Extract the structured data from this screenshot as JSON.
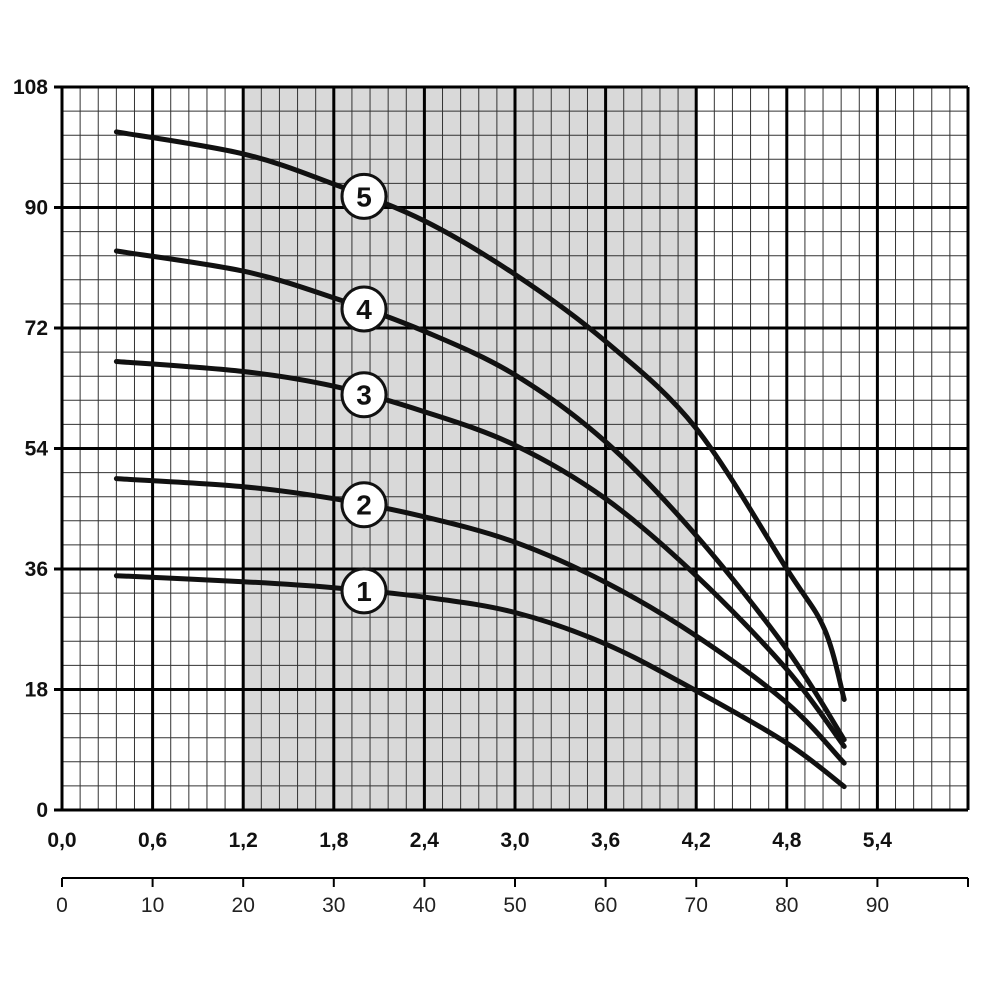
{
  "chart_data": {
    "type": "line",
    "title": "",
    "xlabel": "",
    "ylabel": "",
    "xlim": [
      0,
      6
    ],
    "ylim": [
      0,
      108
    ],
    "grid": true,
    "x_ticks": [
      "0,0",
      "0,6",
      "1,2",
      "1,8",
      "2,4",
      "3,0",
      "3,6",
      "4,2",
      "4,8",
      "5,4"
    ],
    "y_ticks": [
      "0",
      "18",
      "36",
      "54",
      "72",
      "90",
      "108"
    ],
    "secondary_x_axis": {
      "range": [
        0,
        100
      ],
      "ticks": [
        "0",
        "10",
        "20",
        "30",
        "40",
        "50",
        "60",
        "70",
        "80",
        "90"
      ]
    },
    "shaded_region": {
      "x_from": 1.2,
      "x_to": 4.2,
      "color": "#d9d9d9"
    },
    "series_color": "#111111",
    "series": [
      {
        "label": "1",
        "points": [
          [
            0.36,
            35
          ],
          [
            1.2,
            34.1
          ],
          [
            1.8,
            33.2
          ],
          [
            2.4,
            31.8
          ],
          [
            3.0,
            29.5
          ],
          [
            3.6,
            24.8
          ],
          [
            4.2,
            17.8
          ],
          [
            4.8,
            10
          ],
          [
            5.18,
            3.5
          ]
        ]
      },
      {
        "label": "2",
        "points": [
          [
            0.36,
            49.5
          ],
          [
            1.2,
            48.3
          ],
          [
            1.8,
            46.5
          ],
          [
            2.4,
            43.8
          ],
          [
            3.0,
            40
          ],
          [
            3.6,
            34
          ],
          [
            4.2,
            26
          ],
          [
            4.8,
            16
          ],
          [
            5.18,
            7
          ]
        ]
      },
      {
        "label": "3",
        "points": [
          [
            0.36,
            67
          ],
          [
            1.2,
            65.5
          ],
          [
            1.8,
            63.3
          ],
          [
            2.4,
            59.5
          ],
          [
            3.0,
            54.5
          ],
          [
            3.6,
            46.5
          ],
          [
            4.2,
            35
          ],
          [
            4.8,
            21
          ],
          [
            5.18,
            9.5
          ]
        ]
      },
      {
        "label": "4",
        "points": [
          [
            0.36,
            83.5
          ],
          [
            1.2,
            80.5
          ],
          [
            1.8,
            76.5
          ],
          [
            2.4,
            71.5
          ],
          [
            3.0,
            65
          ],
          [
            3.6,
            55
          ],
          [
            4.2,
            41
          ],
          [
            4.8,
            24
          ],
          [
            5.18,
            10.5
          ]
        ]
      },
      {
        "label": "5",
        "points": [
          [
            0.36,
            101.3
          ],
          [
            1.2,
            98
          ],
          [
            1.8,
            93.5
          ],
          [
            2.4,
            88
          ],
          [
            3.0,
            80
          ],
          [
            3.6,
            70
          ],
          [
            4.2,
            57
          ],
          [
            4.8,
            36
          ],
          [
            5.05,
            27
          ],
          [
            5.18,
            16.5
          ]
        ]
      }
    ],
    "labels_at_x": 2.0
  }
}
